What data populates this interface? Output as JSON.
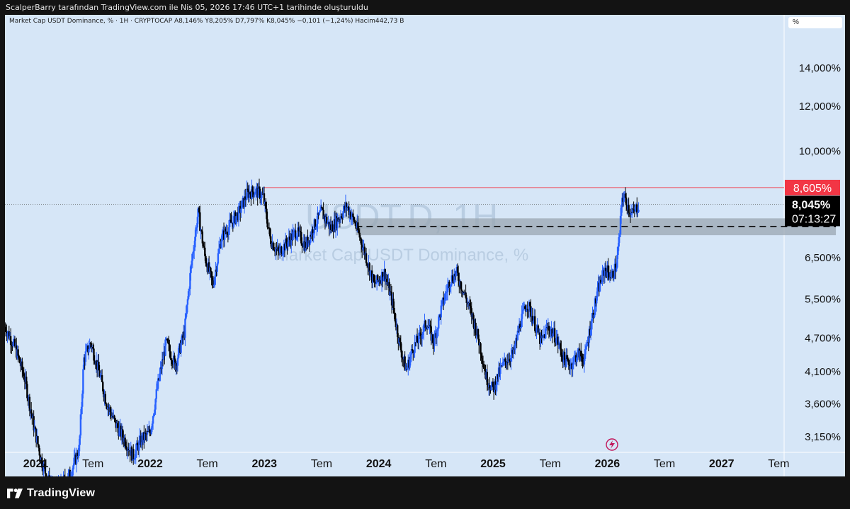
{
  "caption": "ScalperBarry tarafından TradingView.com ile Nis 05, 2026 17:46 UTC+1 tarihinde oluşturuldu",
  "legend": "Market Cap USDT Dominance, % · 1H · CRYPTOCAP  A8,146%  Y8,205%  D7,797%  K8,045%  −0,101 (−1,24%)  Hacim442,73 B",
  "scale_unit": "%",
  "watermark": {
    "symbol": "USDT.D, 1H",
    "name": "Market Cap USDT Dominance, %"
  },
  "brand": "TradingView",
  "colors": {
    "background": "#d6e6f7",
    "up": "#2962ff",
    "down": "#000000",
    "resistance": "#f23645",
    "zone": "#9aa6b2",
    "last_price_bg": "#000000"
  },
  "chart_data": {
    "type": "candlestick",
    "symbol": "USDT.D",
    "interval": "1H",
    "y_scale": "log",
    "y_ticks": [
      "14,000%",
      "12,000%",
      "10,000%",
      "6,500%",
      "5,500%",
      "4,700%",
      "4,100%",
      "3,600%",
      "3,150%"
    ],
    "y_tick_values": [
      14.0,
      12.0,
      10.0,
      6.5,
      5.5,
      4.7,
      4.1,
      3.6,
      3.15
    ],
    "x_ticks": [
      "2021",
      "Tem",
      "2022",
      "Tem",
      "2023",
      "Tem",
      "2024",
      "Tem",
      "2025",
      "Tem",
      "2026",
      "Tem",
      "2027",
      "Tem"
    ],
    "x_tick_values": [
      2021.0,
      2021.5,
      2022.0,
      2022.5,
      2023.0,
      2023.5,
      2024.0,
      2024.5,
      2025.0,
      2025.5,
      2026.0,
      2026.5,
      2027.0,
      2027.5
    ],
    "x_range": [
      2020.73,
      2028.08
    ],
    "y_range": [
      2.95,
      17.3
    ],
    "resistance": {
      "value": 8.605,
      "label": "8,605%",
      "x_start": 2022.99
    },
    "last_price": {
      "value": 8.045,
      "label": "8,045%",
      "countdown": "07:13:27"
    },
    "zone": {
      "low": 7.1,
      "high": 7.6,
      "x_start": 2023.8,
      "x_end": 2028.0
    },
    "zone_midline": 7.35,
    "path": [
      [
        2020.73,
        4.9
      ],
      [
        2020.82,
        4.5
      ],
      [
        2020.9,
        4.0
      ],
      [
        2020.98,
        3.3
      ],
      [
        2021.05,
        2.85
      ],
      [
        2021.15,
        2.5
      ],
      [
        2021.3,
        2.7
      ],
      [
        2021.38,
        3.0
      ],
      [
        2021.42,
        4.3
      ],
      [
        2021.48,
        4.6
      ],
      [
        2021.55,
        4.1
      ],
      [
        2021.62,
        3.6
      ],
      [
        2021.7,
        3.3
      ],
      [
        2021.78,
        3.1
      ],
      [
        2021.85,
        2.9
      ],
      [
        2021.92,
        3.1
      ],
      [
        2022.0,
        3.2
      ],
      [
        2022.07,
        3.9
      ],
      [
        2022.14,
        4.6
      ],
      [
        2022.22,
        4.2
      ],
      [
        2022.3,
        4.8
      ],
      [
        2022.36,
        6.3
      ],
      [
        2022.42,
        7.8
      ],
      [
        2022.48,
        6.5
      ],
      [
        2022.55,
        5.8
      ],
      [
        2022.62,
        7.0
      ],
      [
        2022.7,
        7.4
      ],
      [
        2022.78,
        7.8
      ],
      [
        2022.85,
        8.4
      ],
      [
        2022.92,
        8.5
      ],
      [
        2022.99,
        8.3
      ],
      [
        2023.05,
        7.0
      ],
      [
        2023.12,
        6.6
      ],
      [
        2023.2,
        6.9
      ],
      [
        2023.28,
        7.2
      ],
      [
        2023.36,
        6.8
      ],
      [
        2023.44,
        7.4
      ],
      [
        2023.5,
        7.8
      ],
      [
        2023.58,
        7.3
      ],
      [
        2023.65,
        7.6
      ],
      [
        2023.72,
        8.0
      ],
      [
        2023.8,
        7.4
      ],
      [
        2023.88,
        6.6
      ],
      [
        2023.96,
        5.8
      ],
      [
        2024.05,
        6.1
      ],
      [
        2024.12,
        5.4
      ],
      [
        2024.18,
        4.6
      ],
      [
        2024.24,
        4.1
      ],
      [
        2024.3,
        4.5
      ],
      [
        2024.36,
        4.7
      ],
      [
        2024.42,
        5.0
      ],
      [
        2024.48,
        4.6
      ],
      [
        2024.55,
        5.3
      ],
      [
        2024.62,
        5.9
      ],
      [
        2024.68,
        6.1
      ],
      [
        2024.75,
        5.6
      ],
      [
        2024.82,
        5.1
      ],
      [
        2024.88,
        4.6
      ],
      [
        2024.94,
        4.0
      ],
      [
        2025.0,
        3.8
      ],
      [
        2025.06,
        4.1
      ],
      [
        2025.12,
        4.3
      ],
      [
        2025.18,
        4.4
      ],
      [
        2025.24,
        5.0
      ],
      [
        2025.3,
        5.4
      ],
      [
        2025.36,
        5.0
      ],
      [
        2025.42,
        4.6
      ],
      [
        2025.48,
        4.9
      ],
      [
        2025.55,
        4.7
      ],
      [
        2025.62,
        4.3
      ],
      [
        2025.68,
        4.2
      ],
      [
        2025.74,
        4.4
      ],
      [
        2025.8,
        4.3
      ],
      [
        2025.86,
        5.0
      ],
      [
        2025.92,
        5.7
      ],
      [
        2025.98,
        6.2
      ],
      [
        2026.04,
        6.0
      ],
      [
        2026.08,
        6.3
      ],
      [
        2026.11,
        7.2
      ],
      [
        2026.13,
        8.3
      ],
      [
        2026.16,
        8.2
      ],
      [
        2026.19,
        7.9
      ],
      [
        2026.22,
        7.7
      ],
      [
        2026.25,
        7.9
      ],
      [
        2026.28,
        8.045
      ]
    ]
  }
}
